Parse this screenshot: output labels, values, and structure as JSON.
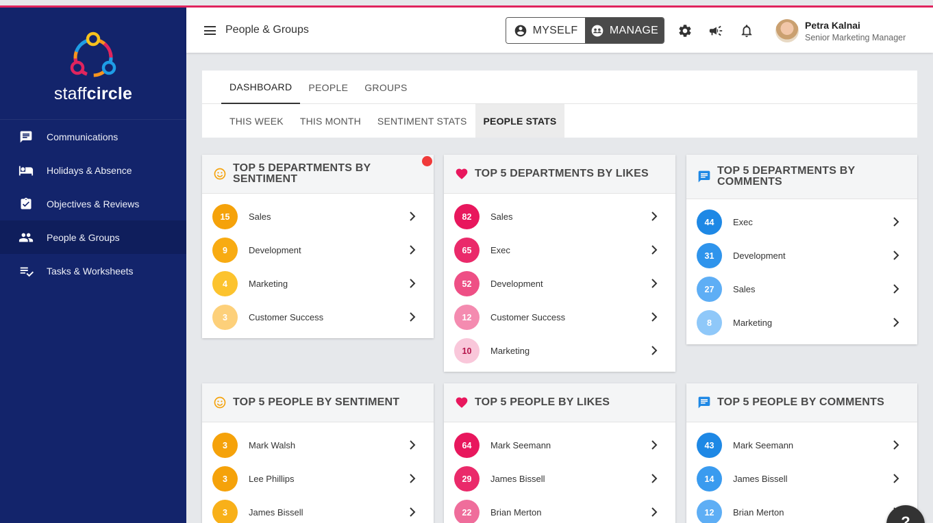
{
  "app": {
    "brand_left": "staff",
    "brand_right": "circle",
    "colors": {
      "sidebar": "#13246b",
      "accent_line": "#e0245e",
      "sentiment": [
        "#f5a20a",
        "#f8b019",
        "#fcc32e",
        "#fdd07a"
      ],
      "likes": [
        "#e8175d",
        "#ea3f77",
        "#ef6d9b",
        "#f49ab9",
        "#f8c3d6"
      ],
      "comments": [
        "#1e88e5",
        "#3a9bef",
        "#5eaef5",
        "#8fc8f9"
      ]
    }
  },
  "sidebar": {
    "items": [
      {
        "label": "Communications",
        "icon": "chat-icon"
      },
      {
        "label": "Holidays & Absence",
        "icon": "bed-icon"
      },
      {
        "label": "Objectives & Reviews",
        "icon": "clipboard-check-icon"
      },
      {
        "label": "People & Groups",
        "icon": "people-icon"
      },
      {
        "label": "Tasks & Worksheets",
        "icon": "checklist-icon"
      }
    ],
    "active_index": 3
  },
  "header": {
    "title": "People & Groups",
    "toggle": {
      "myself": "MYSELF",
      "manage": "MANAGE",
      "selected": "MANAGE"
    },
    "icons": [
      "settings-icon",
      "megaphone-icon",
      "bell-icon"
    ],
    "user": {
      "name": "Petra Kalnai",
      "role": "Senior Marketing Manager"
    }
  },
  "tabs": {
    "primary": [
      "DASHBOARD",
      "PEOPLE",
      "GROUPS"
    ],
    "primary_active": "DASHBOARD",
    "secondary": [
      "THIS WEEK",
      "THIS MONTH",
      "SENTIMENT STATS",
      "PEOPLE STATS"
    ],
    "secondary_active": "PEOPLE STATS"
  },
  "cards": {
    "dept_sentiment": {
      "title": "TOP 5 DEPARTMENTS BY SENTIMENT",
      "icon": "smiley-icon",
      "rows": [
        {
          "value": "15",
          "label": "Sales"
        },
        {
          "value": "9",
          "label": "Development"
        },
        {
          "value": "4",
          "label": "Marketing"
        },
        {
          "value": "3",
          "label": "Customer Success"
        }
      ]
    },
    "dept_likes": {
      "title": "TOP 5 DEPARTMENTS BY LIKES",
      "icon": "heart-icon",
      "rows": [
        {
          "value": "82",
          "label": "Sales"
        },
        {
          "value": "65",
          "label": "Exec"
        },
        {
          "value": "52",
          "label": "Development"
        },
        {
          "value": "12",
          "label": "Customer Success"
        },
        {
          "value": "10",
          "label": "Marketing"
        }
      ]
    },
    "dept_comments": {
      "title_line1": "TOP 5 DEPARTMENTS BY",
      "title_line2": "COMMENTS",
      "icon": "comment-icon",
      "rows": [
        {
          "value": "44",
          "label": "Exec"
        },
        {
          "value": "31",
          "label": "Development"
        },
        {
          "value": "27",
          "label": "Sales"
        },
        {
          "value": "8",
          "label": "Marketing"
        }
      ]
    },
    "people_sentiment": {
      "title": "TOP 5 PEOPLE BY SENTIMENT",
      "icon": "smiley-icon",
      "rows": [
        {
          "value": "3",
          "label": "Mark Walsh"
        },
        {
          "value": "3",
          "label": "Lee Phillips"
        },
        {
          "value": "3",
          "label": "James Bissell"
        }
      ]
    },
    "people_likes": {
      "title": "TOP 5 PEOPLE BY LIKES",
      "icon": "heart-icon",
      "rows": [
        {
          "value": "64",
          "label": "Mark Seemann"
        },
        {
          "value": "29",
          "label": "James Bissell"
        },
        {
          "value": "22",
          "label": "Brian Merton"
        }
      ]
    },
    "people_comments": {
      "title": "TOP 5 PEOPLE BY COMMENTS",
      "icon": "comment-icon",
      "rows": [
        {
          "value": "43",
          "label": "Mark Seemann"
        },
        {
          "value": "14",
          "label": "James Bissell"
        },
        {
          "value": "12",
          "label": "Brian Merton"
        }
      ]
    }
  },
  "help": {
    "label": "?"
  }
}
